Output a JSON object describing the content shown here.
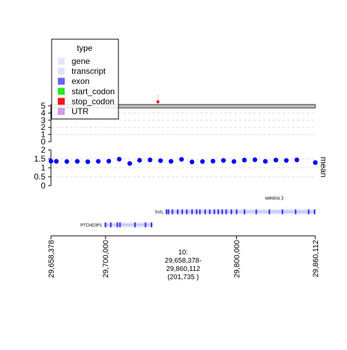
{
  "chart_data": [
    {
      "type": "scatter",
      "panel": "lollipop",
      "ylim": [
        0,
        5
      ],
      "y_ticks": [
        "0",
        "1",
        "2",
        "3",
        "4",
        "5"
      ],
      "mutation": {
        "x": 29740000,
        "y": 5.4,
        "color": "#ff0000"
      },
      "legend": {
        "title": "type",
        "placement": "top-left",
        "entries": [
          {
            "label": "gene",
            "color": "#e6e6ff"
          },
          {
            "label": "transcript",
            "color": "#e1e1ff"
          },
          {
            "label": "exon",
            "color": "#6666ff"
          },
          {
            "label": "start_codon",
            "color": "#22ee22"
          },
          {
            "label": "stop_codon",
            "color": "#ff1111"
          },
          {
            "label": "UTR",
            "color": "#cc99ee"
          }
        ]
      }
    },
    {
      "type": "scatter",
      "panel": "mean",
      "ylabel": "mean",
      "ylim": [
        0,
        2
      ],
      "y_ticks": [
        "0",
        "0.5",
        "1",
        "1.5",
        "2"
      ],
      "grid": true,
      "color": "#0000ff",
      "x": [
        29658378,
        29662500,
        29670500,
        29678500,
        29686500,
        29694500,
        29702500,
        29710500,
        29718500,
        29726000,
        29734000,
        29742000,
        29750000,
        29758000,
        29766000,
        29774000,
        29782000,
        29790000,
        29798000,
        29806000,
        29814000,
        29822000,
        29830000,
        29838000,
        29846000,
        29860112
      ],
      "values": [
        1.37,
        1.36,
        1.35,
        1.36,
        1.34,
        1.36,
        1.37,
        1.48,
        1.24,
        1.42,
        1.44,
        1.4,
        1.36,
        1.47,
        1.33,
        1.35,
        1.37,
        1.41,
        1.35,
        1.43,
        1.45,
        1.36,
        1.43,
        1.41,
        1.44,
        1.29
      ]
    },
    {
      "type": "gene_track",
      "genes": [
        {
          "name": "MIR604",
          "start": 29834500,
          "end": 29835500,
          "row": 0
        },
        {
          "name": "SVIL",
          "start": 29746000,
          "end": 29860112,
          "row": 1,
          "exons": [
            29746500,
            29748000,
            29751000,
            29755000,
            29758500,
            29762000,
            29766000,
            29769500,
            29772000,
            29776000,
            29779500,
            29783000,
            29786000,
            29789000,
            29792000,
            29796000,
            29800000,
            29806000,
            29815000,
            29825000,
            29835000,
            29845000,
            29855000,
            29859500
          ]
        },
        {
          "name": "PTCHD3P1",
          "start": 29699000,
          "end": 29736000,
          "row": 2,
          "exons": [
            29700000,
            29704000,
            29709000,
            29711000,
            29722500,
            29730500,
            29735000
          ]
        }
      ]
    },
    {
      "type": "genomic_axis",
      "x_ticks": [
        "29,658,378",
        "29,700,000",
        "29,800,000",
        "29,860,112"
      ],
      "tick_values": [
        29658378,
        29700000,
        29800000,
        29860112
      ],
      "region_label": [
        "10:",
        "29,658,378-",
        "29,860,112",
        "(201,735 )"
      ]
    }
  ]
}
